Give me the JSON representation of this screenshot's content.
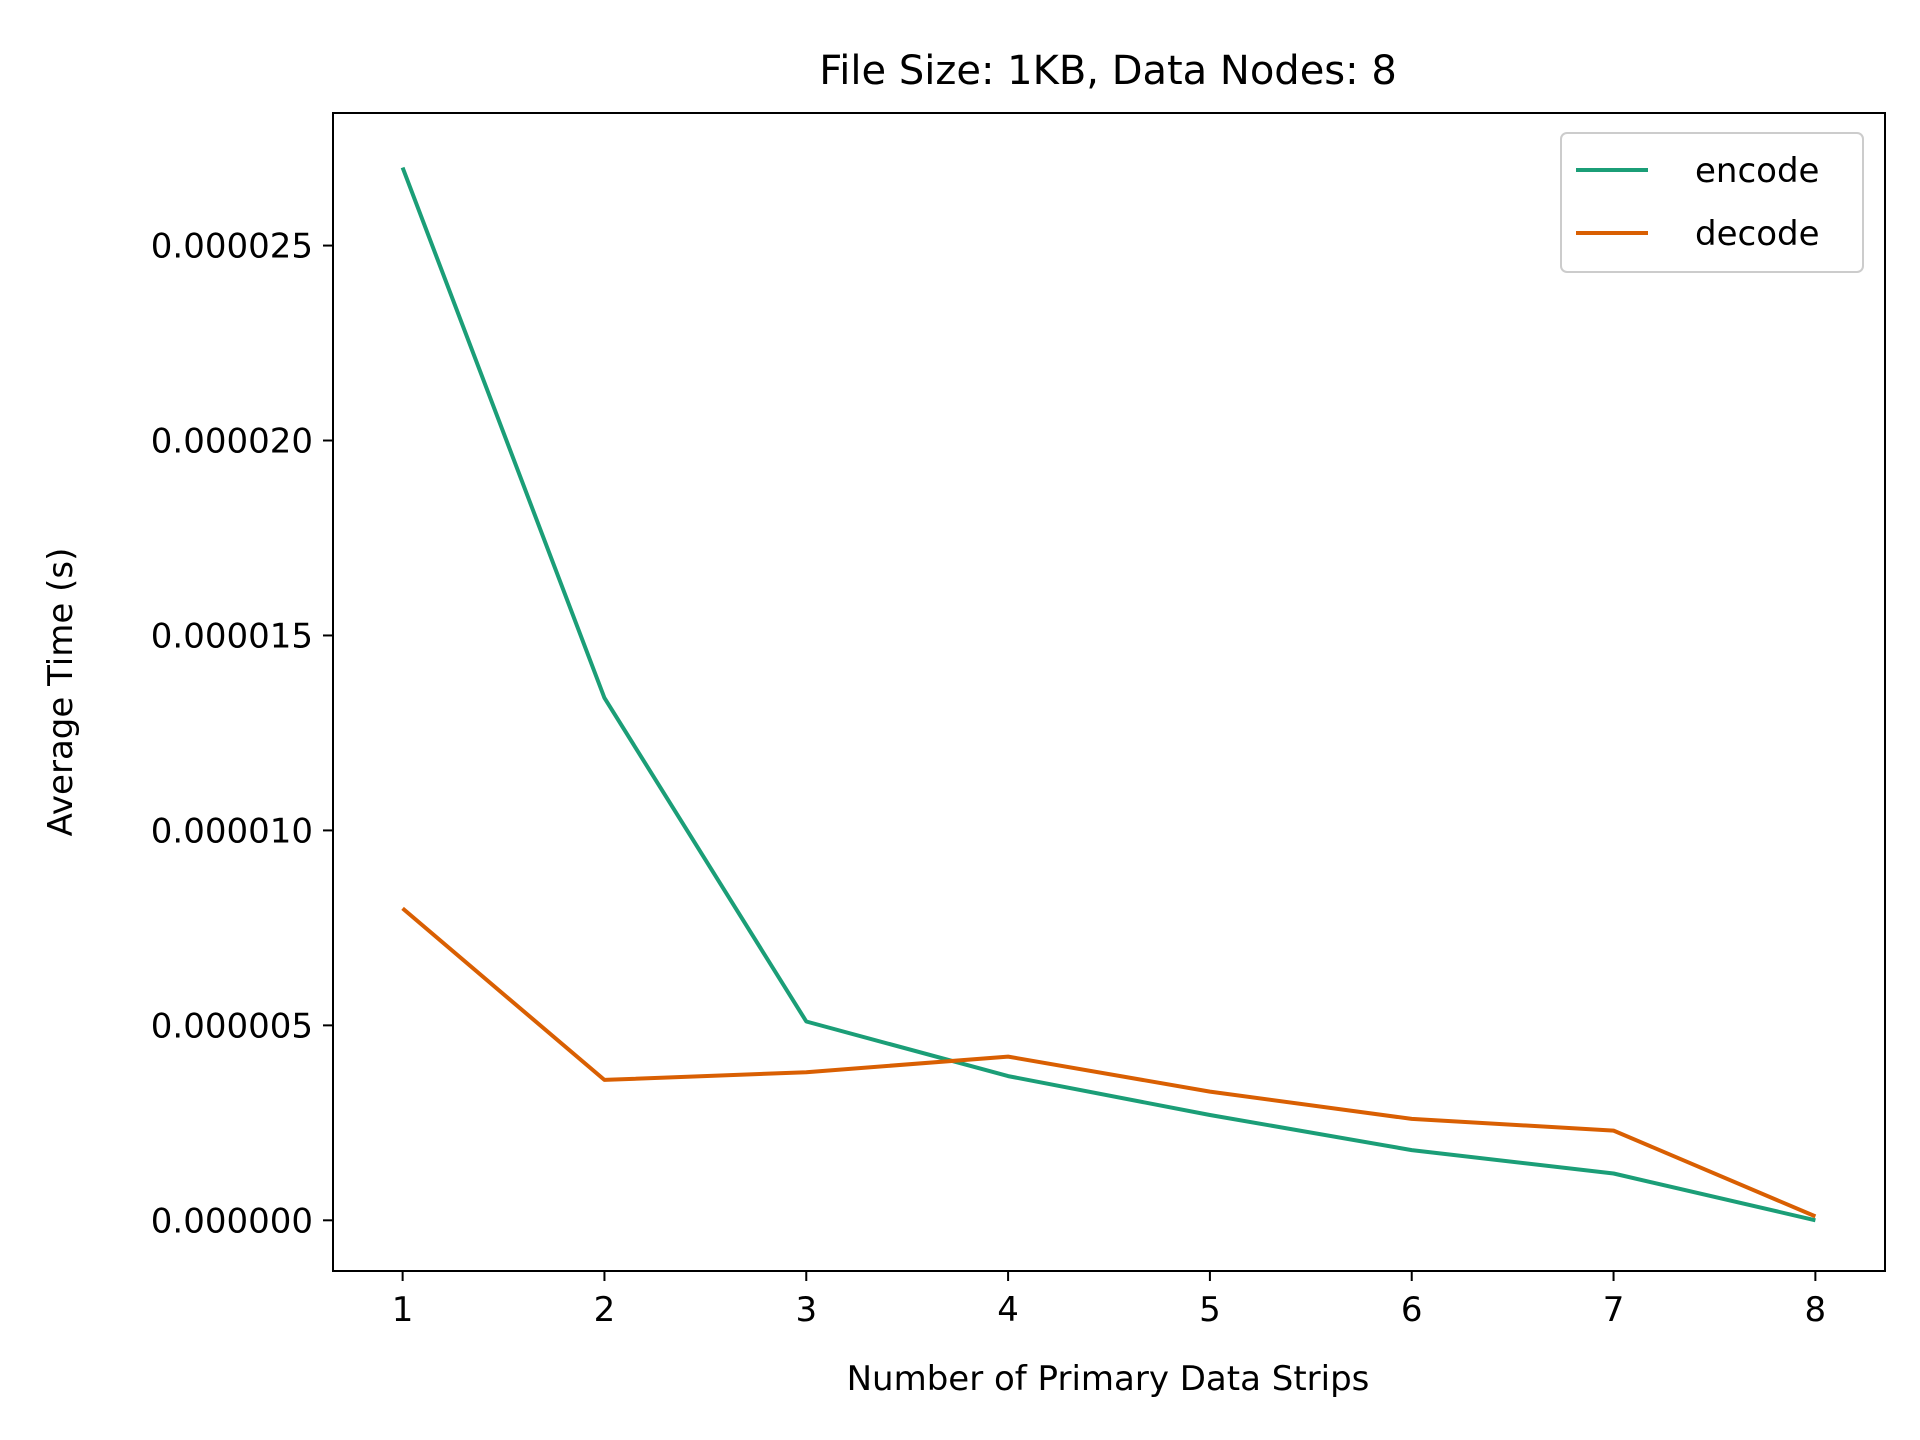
{
  "chart_data": {
    "type": "line",
    "title": "File Size: 1KB, Data Nodes: 8",
    "xlabel": "Number of Primary Data Strips",
    "ylabel": "Average Time (s)",
    "x": [
      1,
      2,
      3,
      4,
      5,
      6,
      7,
      8
    ],
    "x_ticks": [
      "1",
      "2",
      "3",
      "4",
      "5",
      "6",
      "7",
      "8"
    ],
    "xlim": [
      0.655,
      8.345
    ],
    "y_ticks": [
      0,
      5e-06,
      1e-05,
      1.5e-05,
      2e-05,
      2.5e-05
    ],
    "y_tick_labels": [
      "0.000000",
      "0.000005",
      "0.000010",
      "0.000015",
      "0.000020",
      "0.000025"
    ],
    "ylim": [
      -1.3e-06,
      2.84e-05
    ],
    "grid": false,
    "legend_position": "top-right",
    "series": [
      {
        "name": "encode",
        "color": "#1b9e77",
        "values": [
          2.7e-05,
          1.34e-05,
          5.1e-06,
          3.7e-06,
          2.7e-06,
          1.8e-06,
          1.2e-06,
          0.0
        ]
      },
      {
        "name": "decode",
        "color": "#d95f02",
        "values": [
          8e-06,
          3.6e-06,
          3.8e-06,
          4.2e-06,
          3.3e-06,
          2.6e-06,
          2.3e-06,
          1e-07
        ]
      }
    ]
  }
}
